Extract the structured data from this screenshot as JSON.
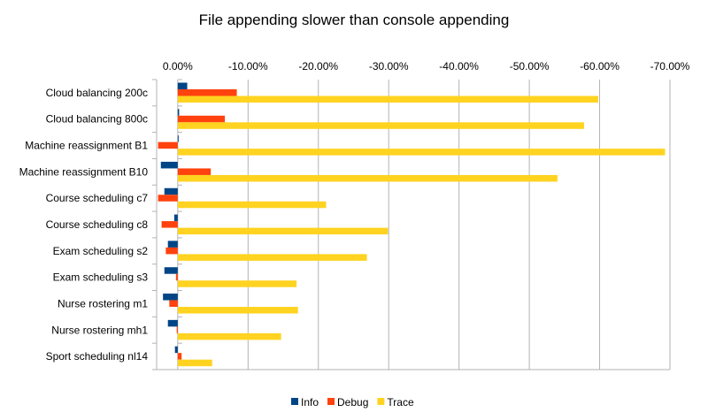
{
  "chart_data": {
    "type": "bar",
    "orientation": "horizontal",
    "title": "File appending slower than console appending",
    "xlabel": "",
    "ylabel": "",
    "xlim": [
      3,
      -70
    ],
    "x_reversed": true,
    "grid": true,
    "legend_position": "bottom",
    "x_ticks": [
      "0.00%",
      "-10.00%",
      "-20.00%",
      "-30.00%",
      "-40.00%",
      "-50.00%",
      "-60.00%",
      "-70.00%"
    ],
    "x_tick_values": [
      0,
      -10,
      -20,
      -30,
      -40,
      -50,
      -60,
      -70
    ],
    "categories": [
      "Cloud balancing 200c",
      "Cloud balancing 800c",
      "Machine reassignment B1",
      "Machine reassignment B10",
      "Course scheduling c7",
      "Course scheduling c8",
      "Exam scheduling s2",
      "Exam scheduling s3",
      "Nurse rostering m1",
      "Nurse rostering mh1",
      "Sport scheduling nl14"
    ],
    "series": [
      {
        "name": "Info",
        "color": "#004586",
        "values": [
          -1.35,
          -0.2,
          0.0,
          2.4,
          1.9,
          0.5,
          1.4,
          1.9,
          2.1,
          1.4,
          0.4
        ]
      },
      {
        "name": "Debug",
        "color": "#ff420e",
        "values": [
          -8.4,
          -6.7,
          2.8,
          -4.7,
          2.8,
          2.3,
          1.7,
          0.25,
          1.2,
          0.15,
          -0.55
        ]
      },
      {
        "name": "Trace",
        "color": "#ffd320",
        "values": [
          -59.8,
          -57.8,
          -69.3,
          -54.0,
          -21.1,
          -29.9,
          -26.9,
          -16.9,
          -17.1,
          -14.7,
          -4.9
        ]
      }
    ]
  }
}
